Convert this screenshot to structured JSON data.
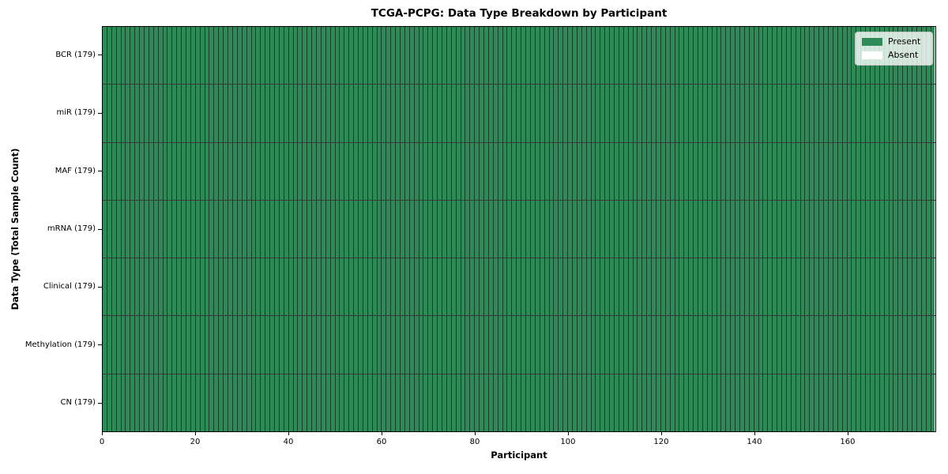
{
  "colors": {
    "present": "#2e8b57",
    "absent": "#ffffff",
    "cell_edge": "rgba(0,0,0,0.55)",
    "row_divider": "rgba(0,0,0,0.78)",
    "axis": "#000000",
    "legend_background": "rgba(255,255,255,0.8)",
    "legend_border": "#c6c6c6"
  },
  "chart_data": {
    "type": "heatmap",
    "title": "TCGA-PCPG: Data Type Breakdown by Participant",
    "xlabel": "Participant",
    "ylabel": "Data Type (Total Sample Count)",
    "n_participants": 179,
    "x_range": [
      0,
      179
    ],
    "x_ticks": [
      0,
      20,
      40,
      60,
      80,
      100,
      120,
      140,
      160
    ],
    "grid": false,
    "legend": {
      "position": "upper right",
      "entries": [
        {
          "label": "Present",
          "color": "#2e8b57"
        },
        {
          "label": "Absent",
          "color": "#ffffff"
        }
      ]
    },
    "rows": [
      {
        "label": "BCR (179)",
        "data_type": "BCR",
        "total_samples": 179,
        "present_count": 179,
        "absent_count": 0,
        "absent_indices": []
      },
      {
        "label": "miR (179)",
        "data_type": "miR",
        "total_samples": 179,
        "present_count": 179,
        "absent_count": 0,
        "absent_indices": []
      },
      {
        "label": "MAF (179)",
        "data_type": "MAF",
        "total_samples": 179,
        "present_count": 179,
        "absent_count": 0,
        "absent_indices": []
      },
      {
        "label": "mRNA (179)",
        "data_type": "mRNA",
        "total_samples": 179,
        "present_count": 179,
        "absent_count": 0,
        "absent_indices": []
      },
      {
        "label": "Clinical (179)",
        "data_type": "Clinical",
        "total_samples": 179,
        "present_count": 179,
        "absent_count": 0,
        "absent_indices": []
      },
      {
        "label": "Methylation (179)",
        "data_type": "Methylation",
        "total_samples": 179,
        "present_count": 179,
        "absent_count": 0,
        "absent_indices": []
      },
      {
        "label": "CN (179)",
        "data_type": "CN",
        "total_samples": 179,
        "present_count": 179,
        "absent_count": 0,
        "absent_indices": []
      }
    ]
  }
}
